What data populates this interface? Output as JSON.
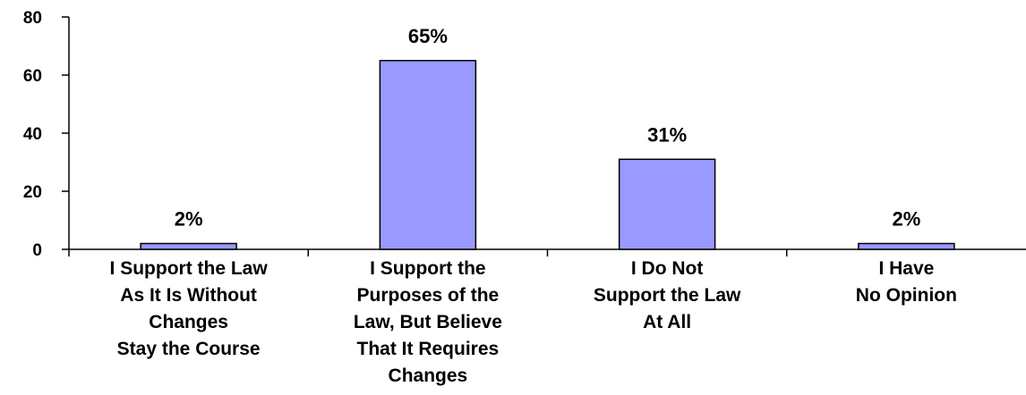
{
  "chart_data": {
    "type": "bar",
    "categories": [
      "I Support the Law\nAs It Is Without\nChanges\nStay the Course",
      "I Support the\nPurposes of the\nLaw, But Believe\nThat It Requires\nChanges",
      "I Do Not\nSupport the Law\nAt All",
      "I Have\nNo Opinion"
    ],
    "values": [
      2,
      65,
      31,
      2
    ],
    "data_labels": [
      "2%",
      "65%",
      "31%",
      "2%"
    ],
    "title": "",
    "xlabel": "",
    "ylabel": "",
    "ylim": [
      0,
      80
    ],
    "yticks": [
      0,
      20,
      40,
      60,
      80
    ],
    "ytick_labels": [
      "0",
      "20",
      "40",
      "60",
      "80"
    ],
    "grid": false,
    "legend": "none",
    "bar_color": "#9999ff",
    "bar_edge_color": "#000000"
  }
}
